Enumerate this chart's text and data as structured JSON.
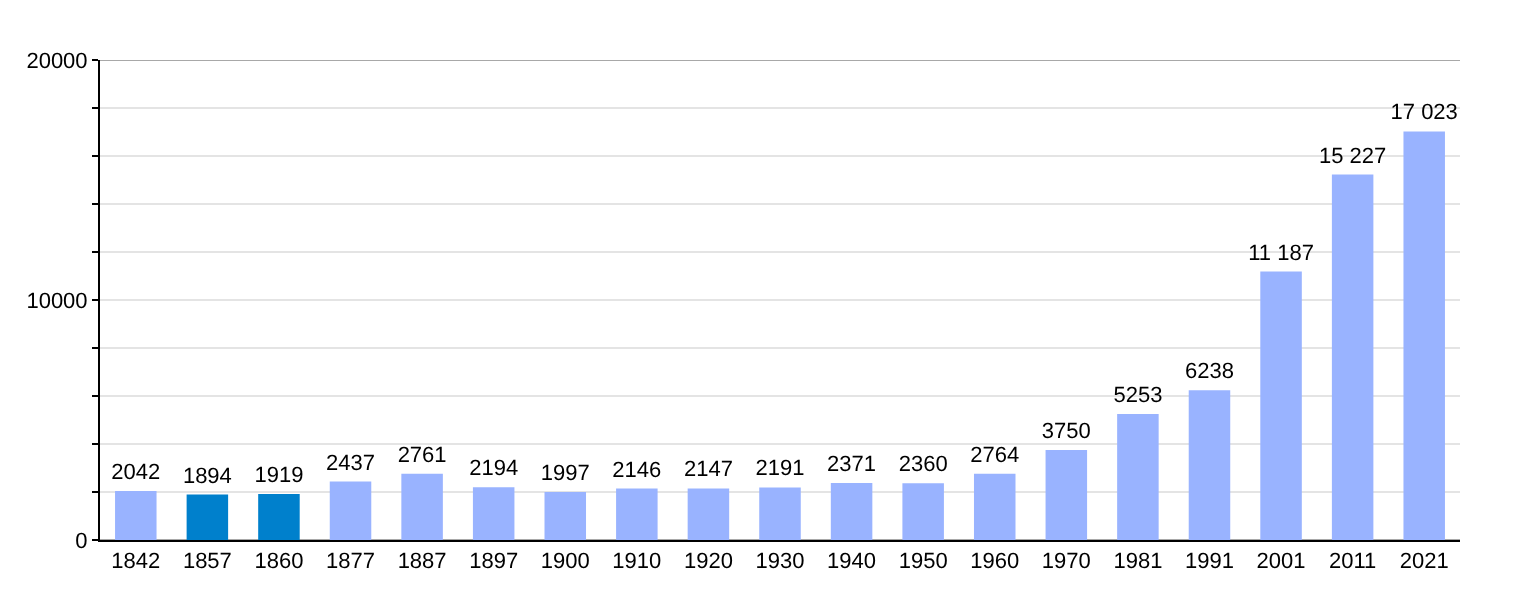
{
  "chart_data": {
    "type": "bar",
    "categories": [
      "1842",
      "1857",
      "1860",
      "1877",
      "1887",
      "1897",
      "1900",
      "1910",
      "1920",
      "1930",
      "1940",
      "1950",
      "1960",
      "1970",
      "1981",
      "1991",
      "2001",
      "2011",
      "2021"
    ],
    "values": [
      2042,
      1894,
      1919,
      2437,
      2761,
      2194,
      1997,
      2146,
      2147,
      2191,
      2371,
      2360,
      2764,
      3750,
      5253,
      6238,
      11187,
      15227,
      17023
    ],
    "value_labels": [
      "2042",
      "1894",
      "1919",
      "2437",
      "2761",
      "2194",
      "1997",
      "2146",
      "2147",
      "2191",
      "2371",
      "2360",
      "2764",
      "3750",
      "5253",
      "6238",
      "11 187",
      "15 227",
      "17 023"
    ],
    "colors": [
      "#99b3ff",
      "#0080cc",
      "#0080cc",
      "#99b3ff",
      "#99b3ff",
      "#99b3ff",
      "#99b3ff",
      "#99b3ff",
      "#99b3ff",
      "#99b3ff",
      "#99b3ff",
      "#99b3ff",
      "#99b3ff",
      "#99b3ff",
      "#99b3ff",
      "#99b3ff",
      "#99b3ff",
      "#99b3ff",
      "#99b3ff"
    ],
    "ylim": [
      0,
      20000
    ],
    "yticks": [
      0,
      {
        "value": 2000,
        "label": null
      },
      {
        "value": 4000,
        "label": null
      },
      {
        "value": 6000,
        "label": null
      },
      {
        "value": 8000,
        "label": null
      },
      10000,
      {
        "value": 12000,
        "label": null
      },
      {
        "value": 14000,
        "label": null
      },
      {
        "value": 16000,
        "label": null
      },
      {
        "value": 18000,
        "label": null
      },
      20000
    ],
    "grid": true
  }
}
